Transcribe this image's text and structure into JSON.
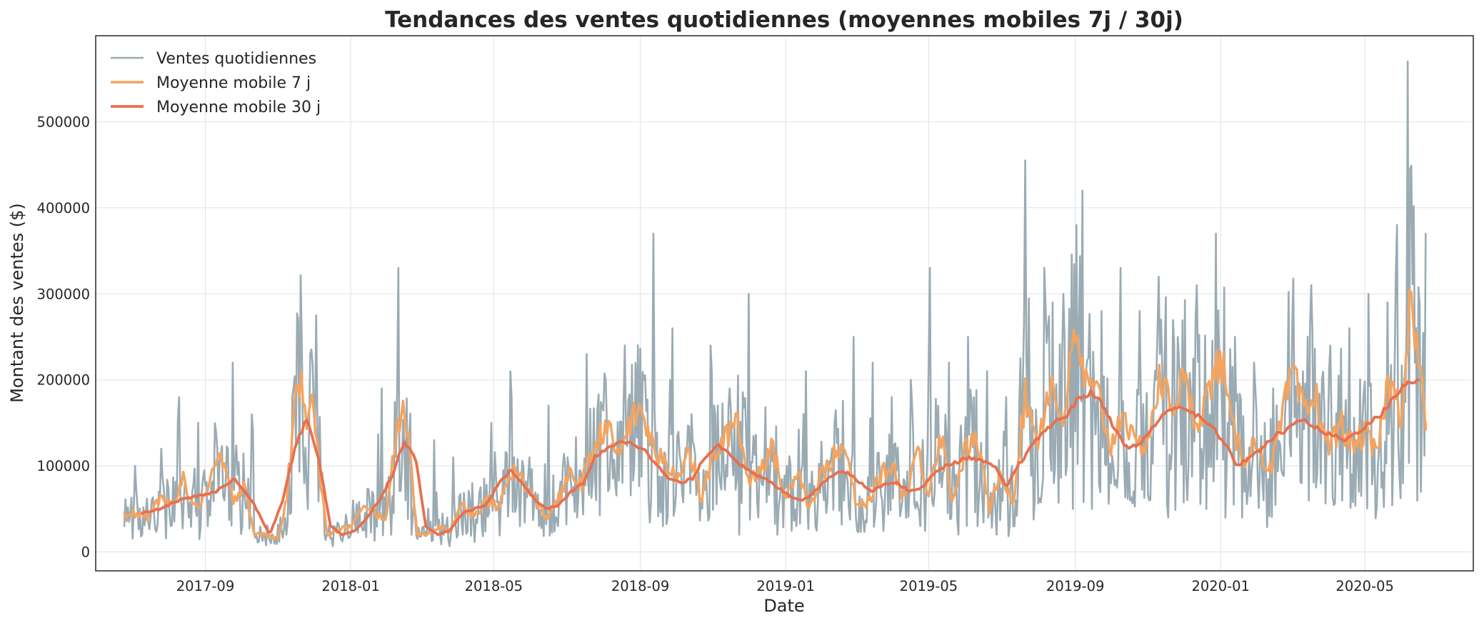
{
  "chart_data": {
    "type": "line",
    "title": "Tendances des ventes quotidiennes (moyennes mobiles 7j / 30j)",
    "xlabel": "Date",
    "ylabel": "Montant des ventes ($)",
    "x_range": [
      "2017-06-01",
      "2020-07-31"
    ],
    "ylim": [
      -22000,
      600000
    ],
    "x_ticks": [
      {
        "date": "2017-09-01",
        "label": "2017-09"
      },
      {
        "date": "2018-01-01",
        "label": "2018-01"
      },
      {
        "date": "2018-05-01",
        "label": "2018-05"
      },
      {
        "date": "2018-09-01",
        "label": "2018-09"
      },
      {
        "date": "2019-01-01",
        "label": "2019-01"
      },
      {
        "date": "2019-05-01",
        "label": "2019-05"
      },
      {
        "date": "2019-09-01",
        "label": "2019-09"
      },
      {
        "date": "2020-01-01",
        "label": "2020-01"
      },
      {
        "date": "2020-05-01",
        "label": "2020-05"
      }
    ],
    "y_ticks": [
      {
        "value": 0,
        "label": "0"
      },
      {
        "value": 100000,
        "label": "100000"
      },
      {
        "value": 200000,
        "label": "200000"
      },
      {
        "value": 300000,
        "label": "300000"
      },
      {
        "value": 400000,
        "label": "400000"
      },
      {
        "value": 500000,
        "label": "500000"
      }
    ],
    "grid": true,
    "legend_position": "top-left",
    "series": [
      {
        "name": "Ventes quotidiennes",
        "color": "#9aabb3",
        "kind": "daily",
        "x": [
          "2017-06-25",
          "2017-07-04",
          "2017-07-10",
          "2017-07-18",
          "2017-07-26",
          "2017-08-03",
          "2017-08-10",
          "2017-08-18",
          "2017-08-26",
          "2017-09-03",
          "2017-09-10",
          "2017-09-17",
          "2017-09-24",
          "2017-10-02",
          "2017-10-10",
          "2017-10-18",
          "2017-10-26",
          "2017-11-03",
          "2017-11-08",
          "2017-11-13",
          "2017-11-18",
          "2017-11-23",
          "2017-11-28",
          "2017-12-03",
          "2017-12-10",
          "2017-12-18",
          "2017-12-26",
          "2018-01-03",
          "2018-01-11",
          "2018-01-19",
          "2018-01-27",
          "2018-02-04",
          "2018-02-10",
          "2018-02-16",
          "2018-02-21",
          "2018-02-26",
          "2018-03-04",
          "2018-03-12",
          "2018-03-20",
          "2018-03-28",
          "2018-04-05",
          "2018-04-13",
          "2018-04-21",
          "2018-04-29",
          "2018-05-07",
          "2018-05-15",
          "2018-05-23",
          "2018-05-31",
          "2018-06-08",
          "2018-06-16",
          "2018-06-24",
          "2018-07-02",
          "2018-07-10",
          "2018-07-18",
          "2018-07-26",
          "2018-08-03",
          "2018-08-11",
          "2018-08-19",
          "2018-08-27",
          "2018-09-04",
          "2018-09-12",
          "2018-09-20",
          "2018-09-28",
          "2018-10-06",
          "2018-10-14",
          "2018-10-22",
          "2018-10-30",
          "2018-11-07",
          "2018-11-15",
          "2018-11-23",
          "2018-12-01",
          "2018-12-09",
          "2018-12-17",
          "2018-12-25",
          "2019-01-02",
          "2019-01-10",
          "2019-01-18",
          "2019-01-26",
          "2019-02-03",
          "2019-02-11",
          "2019-02-19",
          "2019-02-27",
          "2019-03-07",
          "2019-03-15",
          "2019-03-23",
          "2019-03-31",
          "2019-04-08",
          "2019-04-16",
          "2019-04-24",
          "2019-05-02",
          "2019-05-10",
          "2019-05-18",
          "2019-05-26",
          "2019-06-03",
          "2019-06-11",
          "2019-06-19",
          "2019-06-27",
          "2019-07-05",
          "2019-07-13",
          "2019-07-21",
          "2019-07-29",
          "2019-08-06",
          "2019-08-14",
          "2019-08-22",
          "2019-08-30",
          "2019-09-07",
          "2019-09-15",
          "2019-09-23",
          "2019-10-01",
          "2019-10-09",
          "2019-10-17",
          "2019-10-25",
          "2019-11-02",
          "2019-11-10",
          "2019-11-18",
          "2019-11-26",
          "2019-12-04",
          "2019-12-12",
          "2019-12-20",
          "2019-12-28",
          "2020-01-05",
          "2020-01-13",
          "2020-01-21",
          "2020-01-29",
          "2020-02-06",
          "2020-02-14",
          "2020-02-22",
          "2020-03-01",
          "2020-03-09",
          "2020-03-17",
          "2020-03-25",
          "2020-04-02",
          "2020-04-10",
          "2020-04-18",
          "2020-04-26",
          "2020-05-04",
          "2020-05-12",
          "2020-05-20",
          "2020-05-28",
          "2020-06-02",
          "2020-06-06",
          "2020-06-12",
          "2020-06-17",
          "2020-06-21"
        ],
        "values": [
          30000,
          100000,
          20000,
          60000,
          120000,
          30000,
          180000,
          40000,
          150000,
          30000,
          140000,
          60000,
          220000,
          30000,
          160000,
          20000,
          10000,
          40000,
          20000,
          180000,
          270000,
          80000,
          230000,
          275000,
          20000,
          30000,
          20000,
          60000,
          25000,
          70000,
          190000,
          20000,
          330000,
          60000,
          20000,
          15000,
          20000,
          130000,
          20000,
          110000,
          20000,
          80000,
          30000,
          150000,
          60000,
          210000,
          30000,
          110000,
          30000,
          170000,
          30000,
          110000,
          40000,
          230000,
          60000,
          200000,
          80000,
          240000,
          100000,
          200000,
          370000,
          30000,
          260000,
          70000,
          160000,
          60000,
          240000,
          80000,
          190000,
          20000,
          300000,
          40000,
          120000,
          20000,
          100000,
          30000,
          210000,
          30000,
          80000,
          150000,
          60000,
          250000,
          40000,
          220000,
          60000,
          180000,
          50000,
          200000,
          30000,
          330000,
          80000,
          220000,
          20000,
          250000,
          30000,
          210000,
          20000,
          180000,
          60000,
          455000,
          60000,
          330000,
          80000,
          300000,
          50000,
          420000,
          50000,
          280000,
          80000,
          330000,
          60000,
          280000,
          60000,
          320000,
          40000,
          250000,
          60000,
          310000,
          50000,
          370000,
          40000,
          250000,
          70000,
          220000,
          60000,
          190000,
          90000,
          260000,
          80000,
          310000,
          80000,
          240000,
          90000,
          260000,
          70000,
          300000,
          100000,
          290000,
          380000,
          80000,
          570000,
          220000,
          70000,
          370000
        ]
      },
      {
        "name": "Moyenne mobile 7 j",
        "color": "#f4a460",
        "kind": "ma7",
        "x": [
          "2017-06-25",
          "2017-07-04",
          "2017-07-14",
          "2017-07-24",
          "2017-08-03",
          "2017-08-13",
          "2017-08-23",
          "2017-09-03",
          "2017-09-13",
          "2017-09-24",
          "2017-10-04",
          "2017-10-12",
          "2017-10-22",
          "2017-11-01",
          "2017-11-08",
          "2017-11-14",
          "2017-11-20",
          "2017-11-25",
          "2017-11-30",
          "2017-12-05",
          "2017-12-12",
          "2017-12-22",
          "2018-01-01",
          "2018-01-11",
          "2018-01-21",
          "2018-01-31",
          "2018-02-08",
          "2018-02-14",
          "2018-02-20",
          "2018-02-26",
          "2018-03-06",
          "2018-03-16",
          "2018-03-26",
          "2018-04-05",
          "2018-04-15",
          "2018-04-25",
          "2018-05-05",
          "2018-05-15",
          "2018-05-25",
          "2018-06-04",
          "2018-06-14",
          "2018-06-24",
          "2018-07-04",
          "2018-07-14",
          "2018-07-24",
          "2018-08-03",
          "2018-08-13",
          "2018-08-23",
          "2018-09-02",
          "2018-09-12",
          "2018-09-22",
          "2018-10-02",
          "2018-10-12",
          "2018-10-22",
          "2018-11-01",
          "2018-11-11",
          "2018-11-21",
          "2018-12-01",
          "2018-12-11",
          "2018-12-21",
          "2019-01-01",
          "2019-01-11",
          "2019-01-21",
          "2019-01-31",
          "2019-02-10",
          "2019-02-20",
          "2019-03-02",
          "2019-03-12",
          "2019-03-22",
          "2019-04-01",
          "2019-04-11",
          "2019-04-21",
          "2019-05-01",
          "2019-05-11",
          "2019-05-21",
          "2019-06-01",
          "2019-06-11",
          "2019-06-21",
          "2019-07-01",
          "2019-07-11",
          "2019-07-21",
          "2019-08-01",
          "2019-08-11",
          "2019-08-21",
          "2019-09-01",
          "2019-09-11",
          "2019-09-21",
          "2019-10-01",
          "2019-10-11",
          "2019-10-21",
          "2019-11-01",
          "2019-11-11",
          "2019-11-21",
          "2019-12-01",
          "2019-12-11",
          "2019-12-21",
          "2020-01-01",
          "2020-01-11",
          "2020-01-21",
          "2020-02-01",
          "2020-02-11",
          "2020-02-21",
          "2020-03-01",
          "2020-03-11",
          "2020-03-21",
          "2020-04-01",
          "2020-04-11",
          "2020-04-21",
          "2020-05-01",
          "2020-05-11",
          "2020-05-21",
          "2020-06-01",
          "2020-06-08",
          "2020-06-15",
          "2020-06-21"
        ],
        "values": [
          40000,
          45000,
          40000,
          60000,
          55000,
          85000,
          50000,
          70000,
          115000,
          60000,
          80000,
          20000,
          20000,
          15000,
          60000,
          150000,
          215000,
          160000,
          195000,
          100000,
          20000,
          25000,
          30000,
          50000,
          45000,
          40000,
          135000,
          180000,
          110000,
          20000,
          20000,
          30000,
          25000,
          55000,
          40000,
          60000,
          50000,
          95000,
          85000,
          60000,
          40000,
          60000,
          90000,
          80000,
          120000,
          150000,
          110000,
          150000,
          165000,
          120000,
          100000,
          90000,
          120000,
          60000,
          110000,
          130000,
          160000,
          80000,
          100000,
          120000,
          60000,
          100000,
          50000,
          90000,
          110000,
          120000,
          50000,
          60000,
          90000,
          100000,
          60000,
          120000,
          70000,
          140000,
          60000,
          120000,
          130000,
          50000,
          90000,
          60000,
          180000,
          130000,
          200000,
          150000,
          250000,
          190000,
          180000,
          120000,
          170000,
          120000,
          130000,
          200000,
          170000,
          200000,
          150000,
          180000,
          230000,
          140000,
          110000,
          130000,
          90000,
          150000,
          210000,
          160000,
          180000,
          120000,
          150000,
          120000,
          140000,
          110000,
          200000,
          160000,
          300000,
          220000,
          150000
        ]
      },
      {
        "name": "Moyenne mobile 30 j",
        "color": "#e8704e",
        "kind": "ma30",
        "x": [
          "2017-07-10",
          "2017-07-25",
          "2017-08-10",
          "2017-08-25",
          "2017-09-10",
          "2017-09-25",
          "2017-10-10",
          "2017-10-25",
          "2017-11-05",
          "2017-11-15",
          "2017-11-25",
          "2017-12-05",
          "2017-12-15",
          "2017-12-25",
          "2018-01-05",
          "2018-01-15",
          "2018-01-25",
          "2018-02-05",
          "2018-02-15",
          "2018-02-25",
          "2018-03-05",
          "2018-03-15",
          "2018-03-25",
          "2018-04-05",
          "2018-04-15",
          "2018-04-25",
          "2018-05-05",
          "2018-05-15",
          "2018-05-25",
          "2018-06-05",
          "2018-06-15",
          "2018-06-25",
          "2018-07-05",
          "2018-07-15",
          "2018-07-25",
          "2018-08-05",
          "2018-08-15",
          "2018-08-25",
          "2018-09-05",
          "2018-09-15",
          "2018-09-25",
          "2018-10-05",
          "2018-10-15",
          "2018-10-25",
          "2018-11-05",
          "2018-11-15",
          "2018-11-25",
          "2018-12-05",
          "2018-12-15",
          "2018-12-25",
          "2019-01-05",
          "2019-01-15",
          "2019-01-25",
          "2019-02-05",
          "2019-02-15",
          "2019-02-25",
          "2019-03-05",
          "2019-03-15",
          "2019-03-25",
          "2019-04-05",
          "2019-04-15",
          "2019-04-25",
          "2019-05-05",
          "2019-05-15",
          "2019-05-25",
          "2019-06-05",
          "2019-06-15",
          "2019-06-25",
          "2019-07-05",
          "2019-07-15",
          "2019-07-25",
          "2019-08-05",
          "2019-08-15",
          "2019-08-25",
          "2019-09-05",
          "2019-09-15",
          "2019-09-25",
          "2019-10-05",
          "2019-10-15",
          "2019-10-25",
          "2019-11-05",
          "2019-11-15",
          "2019-11-25",
          "2019-12-05",
          "2019-12-15",
          "2019-12-25",
          "2020-01-05",
          "2020-01-15",
          "2020-01-25",
          "2020-02-05",
          "2020-02-15",
          "2020-02-25",
          "2020-03-05",
          "2020-03-15",
          "2020-03-25",
          "2020-04-05",
          "2020-04-15",
          "2020-04-25",
          "2020-05-05",
          "2020-05-15",
          "2020-05-25",
          "2020-06-05",
          "2020-06-15"
        ],
        "values": [
          45000,
          50000,
          60000,
          65000,
          70000,
          85000,
          60000,
          20000,
          60000,
          120000,
          155000,
          110000,
          30000,
          20000,
          25000,
          40000,
          60000,
          90000,
          130000,
          105000,
          30000,
          20000,
          25000,
          45000,
          50000,
          55000,
          80000,
          95000,
          80000,
          60000,
          50000,
          55000,
          70000,
          80000,
          110000,
          120000,
          130000,
          125000,
          120000,
          100000,
          85000,
          80000,
          85000,
          110000,
          125000,
          115000,
          100000,
          90000,
          85000,
          75000,
          65000,
          60000,
          70000,
          85000,
          95000,
          90000,
          80000,
          70000,
          80000,
          80000,
          70000,
          75000,
          90000,
          100000,
          105000,
          110000,
          105000,
          100000,
          75000,
          100000,
          120000,
          140000,
          150000,
          160000,
          180000,
          185000,
          170000,
          140000,
          120000,
          125000,
          145000,
          160000,
          170000,
          165000,
          155000,
          145000,
          125000,
          100000,
          110000,
          120000,
          135000,
          140000,
          155000,
          150000,
          140000,
          135000,
          130000,
          140000,
          150000,
          160000,
          180000,
          195000,
          200000
        ]
      }
    ]
  }
}
